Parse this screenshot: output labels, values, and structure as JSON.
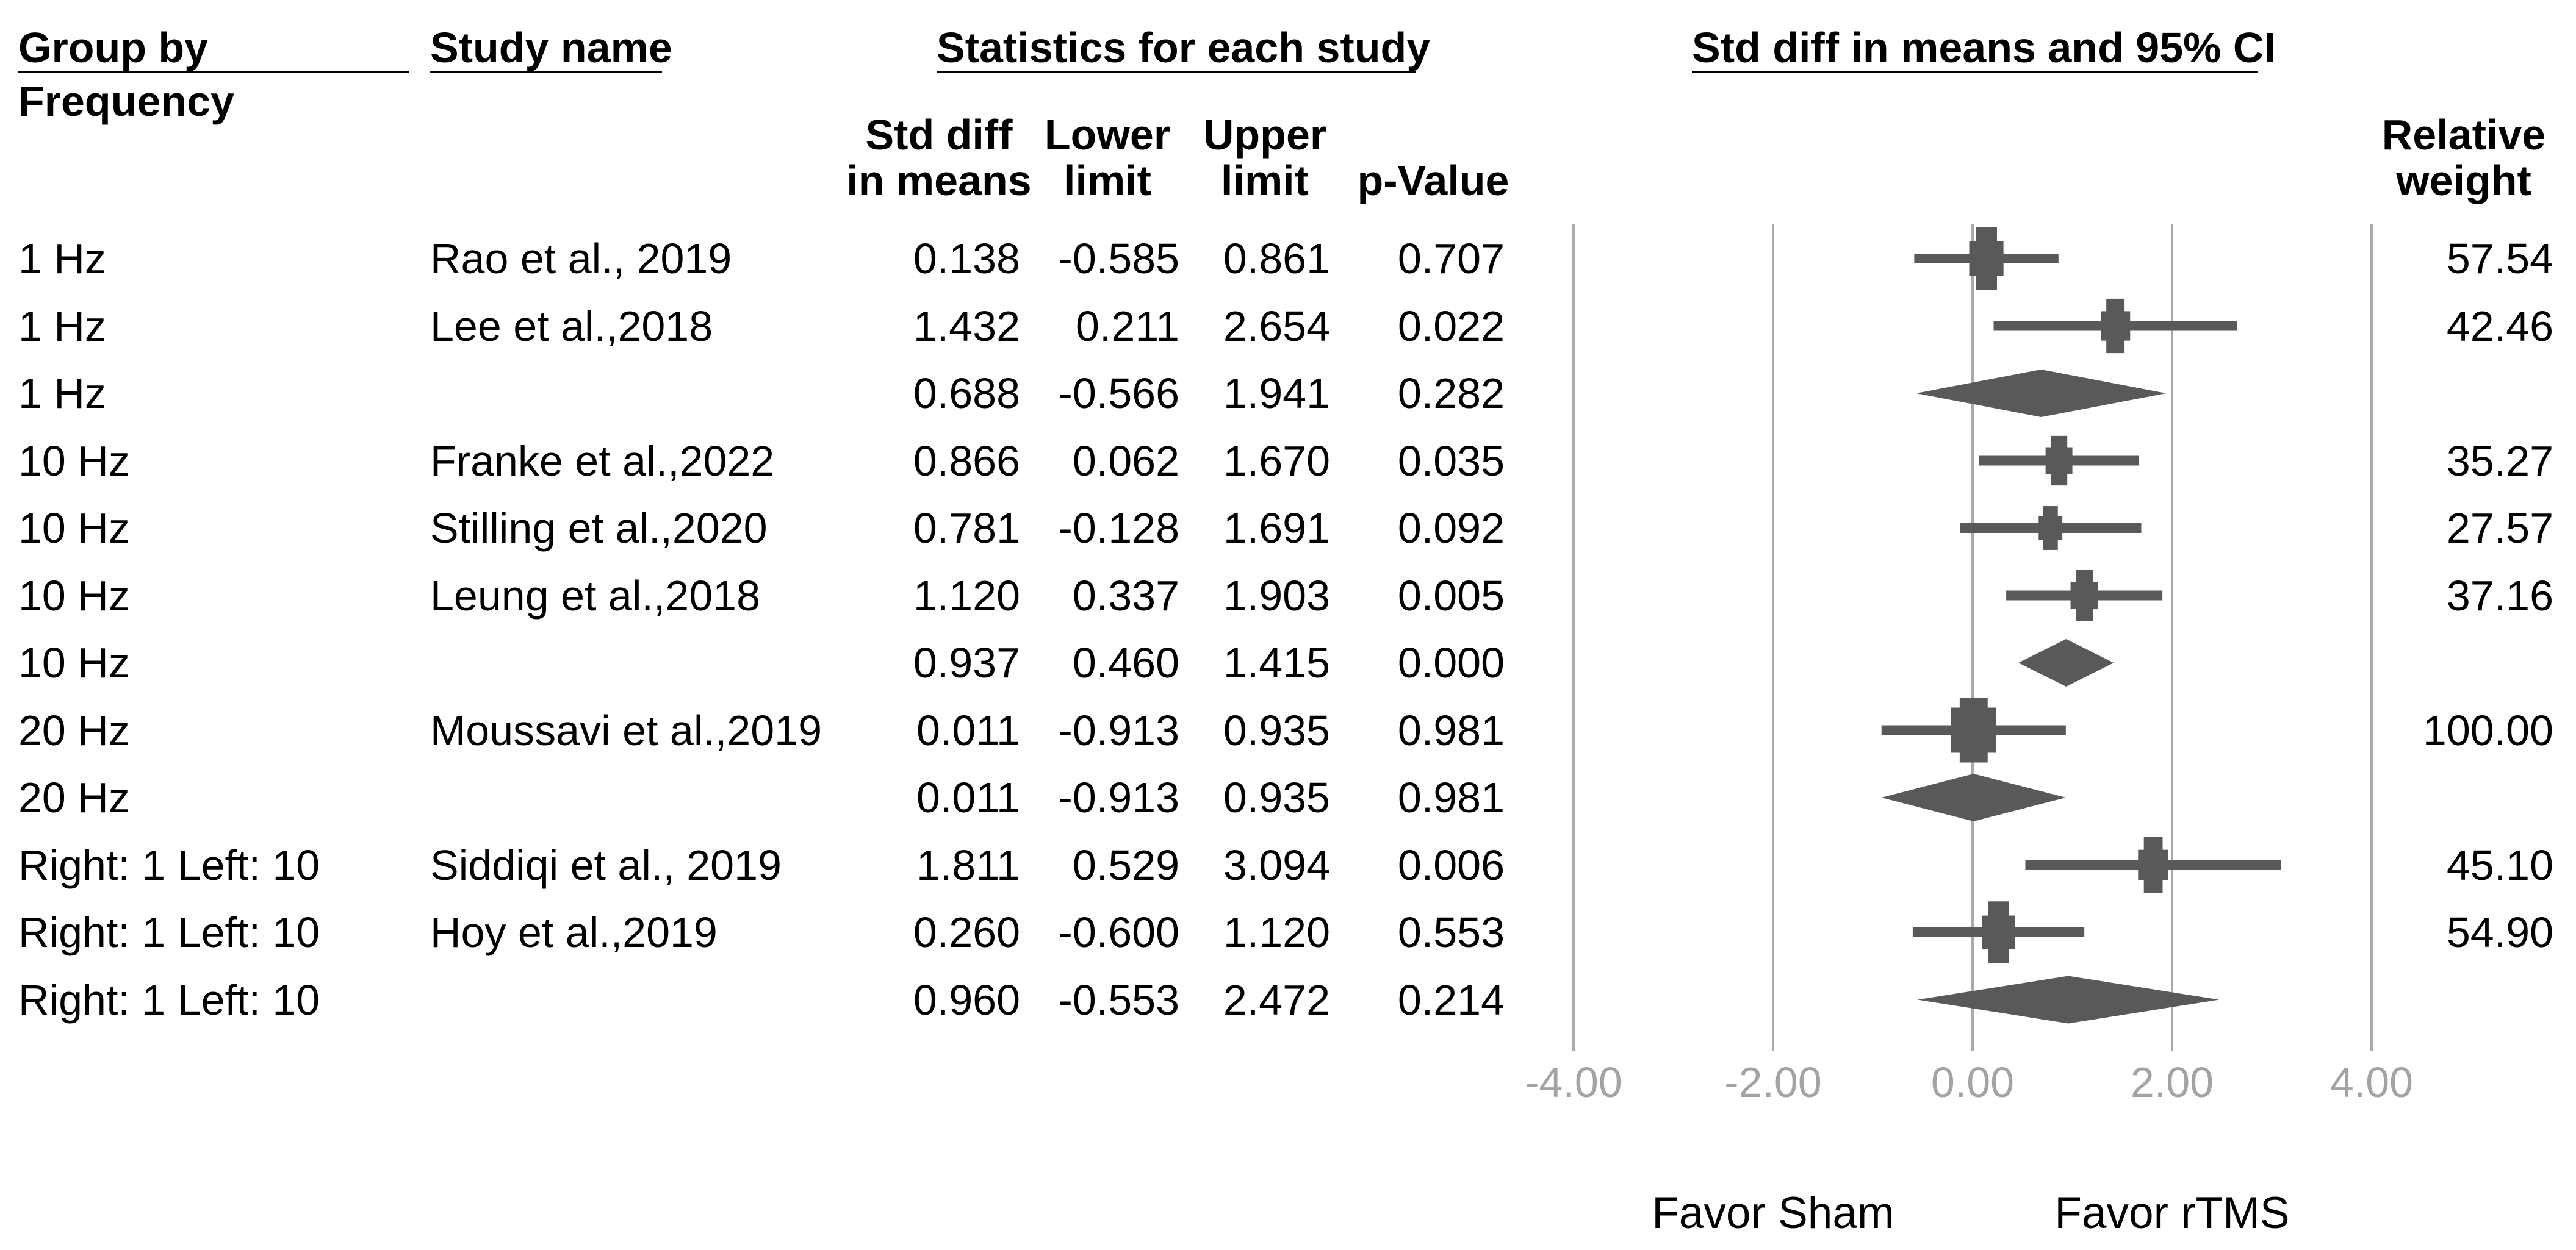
{
  "columns": {
    "group_by_line1": "Group by",
    "group_by_line2": "Frequency",
    "study_name": "Study name",
    "statistics": "Statistics for each study",
    "stat_cols": {
      "col1_line1": "Std diff",
      "col1_line2": "in means",
      "col2_line1": "Lower",
      "col2_line2": "limit",
      "col3_line1": "Upper",
      "col3_line2": "limit",
      "col4_line2": "p-Value"
    },
    "plot": "Std diff in means and 95% CI",
    "weight_line1": "Relative",
    "weight_line2": "weight"
  },
  "axis": {
    "tick_values": [
      -4,
      -2,
      0,
      2,
      4
    ],
    "tick_labels": [
      "-4.00",
      "-2.00",
      "0.00",
      "2.00",
      "4.00"
    ],
    "xmin": -4,
    "xmax": 4,
    "favor_left": "Favor Sham",
    "favor_right": "Favor rTMS"
  },
  "colors": {
    "marker": "#595959",
    "gridline": "#a9a9a9",
    "tick_label": "#a3a3a3",
    "text": "#000000"
  },
  "chart_data": {
    "type": "forest",
    "effect_measure": "Std diff in means",
    "groups": [
      "1 Hz",
      "10 Hz",
      "20 Hz",
      "Right: 1 Left: 10"
    ],
    "rows": [
      {
        "group": "1 Hz",
        "study": "Rao et al., 2019",
        "std_diff": "0.138",
        "lower": "-0.585",
        "upper": "0.861",
        "p_value": "0.707",
        "weight": "57.54",
        "kind": "study"
      },
      {
        "group": "1 Hz",
        "study": "Lee et al.,2018",
        "std_diff": "1.432",
        "lower": "0.211",
        "upper": "2.654",
        "p_value": "0.022",
        "weight": "42.46",
        "kind": "study"
      },
      {
        "group": "1 Hz",
        "study": "",
        "std_diff": "0.688",
        "lower": "-0.566",
        "upper": "1.941",
        "p_value": "0.282",
        "weight": "",
        "kind": "summary"
      },
      {
        "group": "10 Hz",
        "study": "Franke et al.,2022",
        "std_diff": "0.866",
        "lower": "0.062",
        "upper": "1.670",
        "p_value": "0.035",
        "weight": "35.27",
        "kind": "study"
      },
      {
        "group": "10 Hz",
        "study": "Stilling et al.,2020",
        "std_diff": "0.781",
        "lower": "-0.128",
        "upper": "1.691",
        "p_value": "0.092",
        "weight": "27.57",
        "kind": "study"
      },
      {
        "group": "10 Hz",
        "study": "Leung et al.,2018",
        "std_diff": "1.120",
        "lower": "0.337",
        "upper": "1.903",
        "p_value": "0.005",
        "weight": "37.16",
        "kind": "study"
      },
      {
        "group": "10 Hz",
        "study": "",
        "std_diff": "0.937",
        "lower": "0.460",
        "upper": "1.415",
        "p_value": "0.000",
        "weight": "",
        "kind": "summary"
      },
      {
        "group": "20 Hz",
        "study": "Moussavi et al.,2019",
        "std_diff": "0.011",
        "lower": "-0.913",
        "upper": "0.935",
        "p_value": "0.981",
        "weight": "100.00",
        "kind": "study"
      },
      {
        "group": "20 Hz",
        "study": "",
        "std_diff": "0.011",
        "lower": "-0.913",
        "upper": "0.935",
        "p_value": "0.981",
        "weight": "",
        "kind": "summary"
      },
      {
        "group": "Right: 1 Left: 10",
        "study": "Siddiqi et al., 2019",
        "std_diff": "1.811",
        "lower": "0.529",
        "upper": "3.094",
        "p_value": "0.006",
        "weight": "45.10",
        "kind": "study"
      },
      {
        "group": "Right: 1 Left: 10",
        "study": "Hoy et al.,2019",
        "std_diff": "0.260",
        "lower": "-0.600",
        "upper": "1.120",
        "p_value": "0.553",
        "weight": "54.90",
        "kind": "study"
      },
      {
        "group": "Right: 1 Left: 10",
        "study": "",
        "std_diff": "0.960",
        "lower": "-0.553",
        "upper": "2.472",
        "p_value": "0.214",
        "weight": "",
        "kind": "summary"
      }
    ]
  }
}
